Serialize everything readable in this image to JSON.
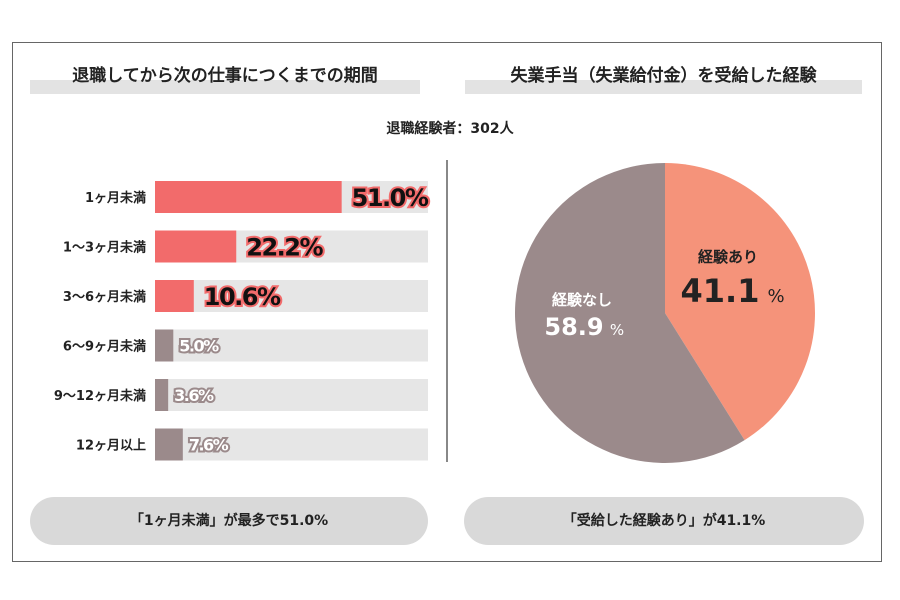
{
  "left_title": "退職してから次の仕事につくまでの期間",
  "right_title": "失業手当（失業給付金）を受給した経験",
  "respondents": "退職経験者：302人",
  "colors": {
    "highlight": "#f26b6b",
    "muted": "#9b8a8b",
    "track": "#e6e6e6",
    "pie_yes": "#f5937a",
    "pie_no": "#9b8a8b"
  },
  "chart_data": [
    {
      "type": "bar",
      "orientation": "horizontal",
      "categories": [
        "1ヶ月未満",
        "1〜3ヶ月未満",
        "3〜6ヶ月未満",
        "6〜9ヶ月未満",
        "9〜12ヶ月未満",
        "12ヶ月以上"
      ],
      "values": [
        51.0,
        22.2,
        10.6,
        5.0,
        3.6,
        7.6
      ],
      "labels": [
        "51.0%",
        "22.2%",
        "10.6%",
        "5.0%",
        "3.6%",
        "7.6%"
      ],
      "highlighted": [
        true,
        true,
        true,
        false,
        false,
        false
      ]
    },
    {
      "type": "pie",
      "slices": [
        {
          "name": "経験あり",
          "value": 41.1,
          "label": "41.1",
          "unit": "%"
        },
        {
          "name": "経験なし",
          "value": 58.9,
          "label": "58.9",
          "unit": "%"
        }
      ]
    }
  ],
  "left_summary": "「1ヶ月未満」が最多で51.0%",
  "right_summary": "「受給した経験あり」が41.1%"
}
